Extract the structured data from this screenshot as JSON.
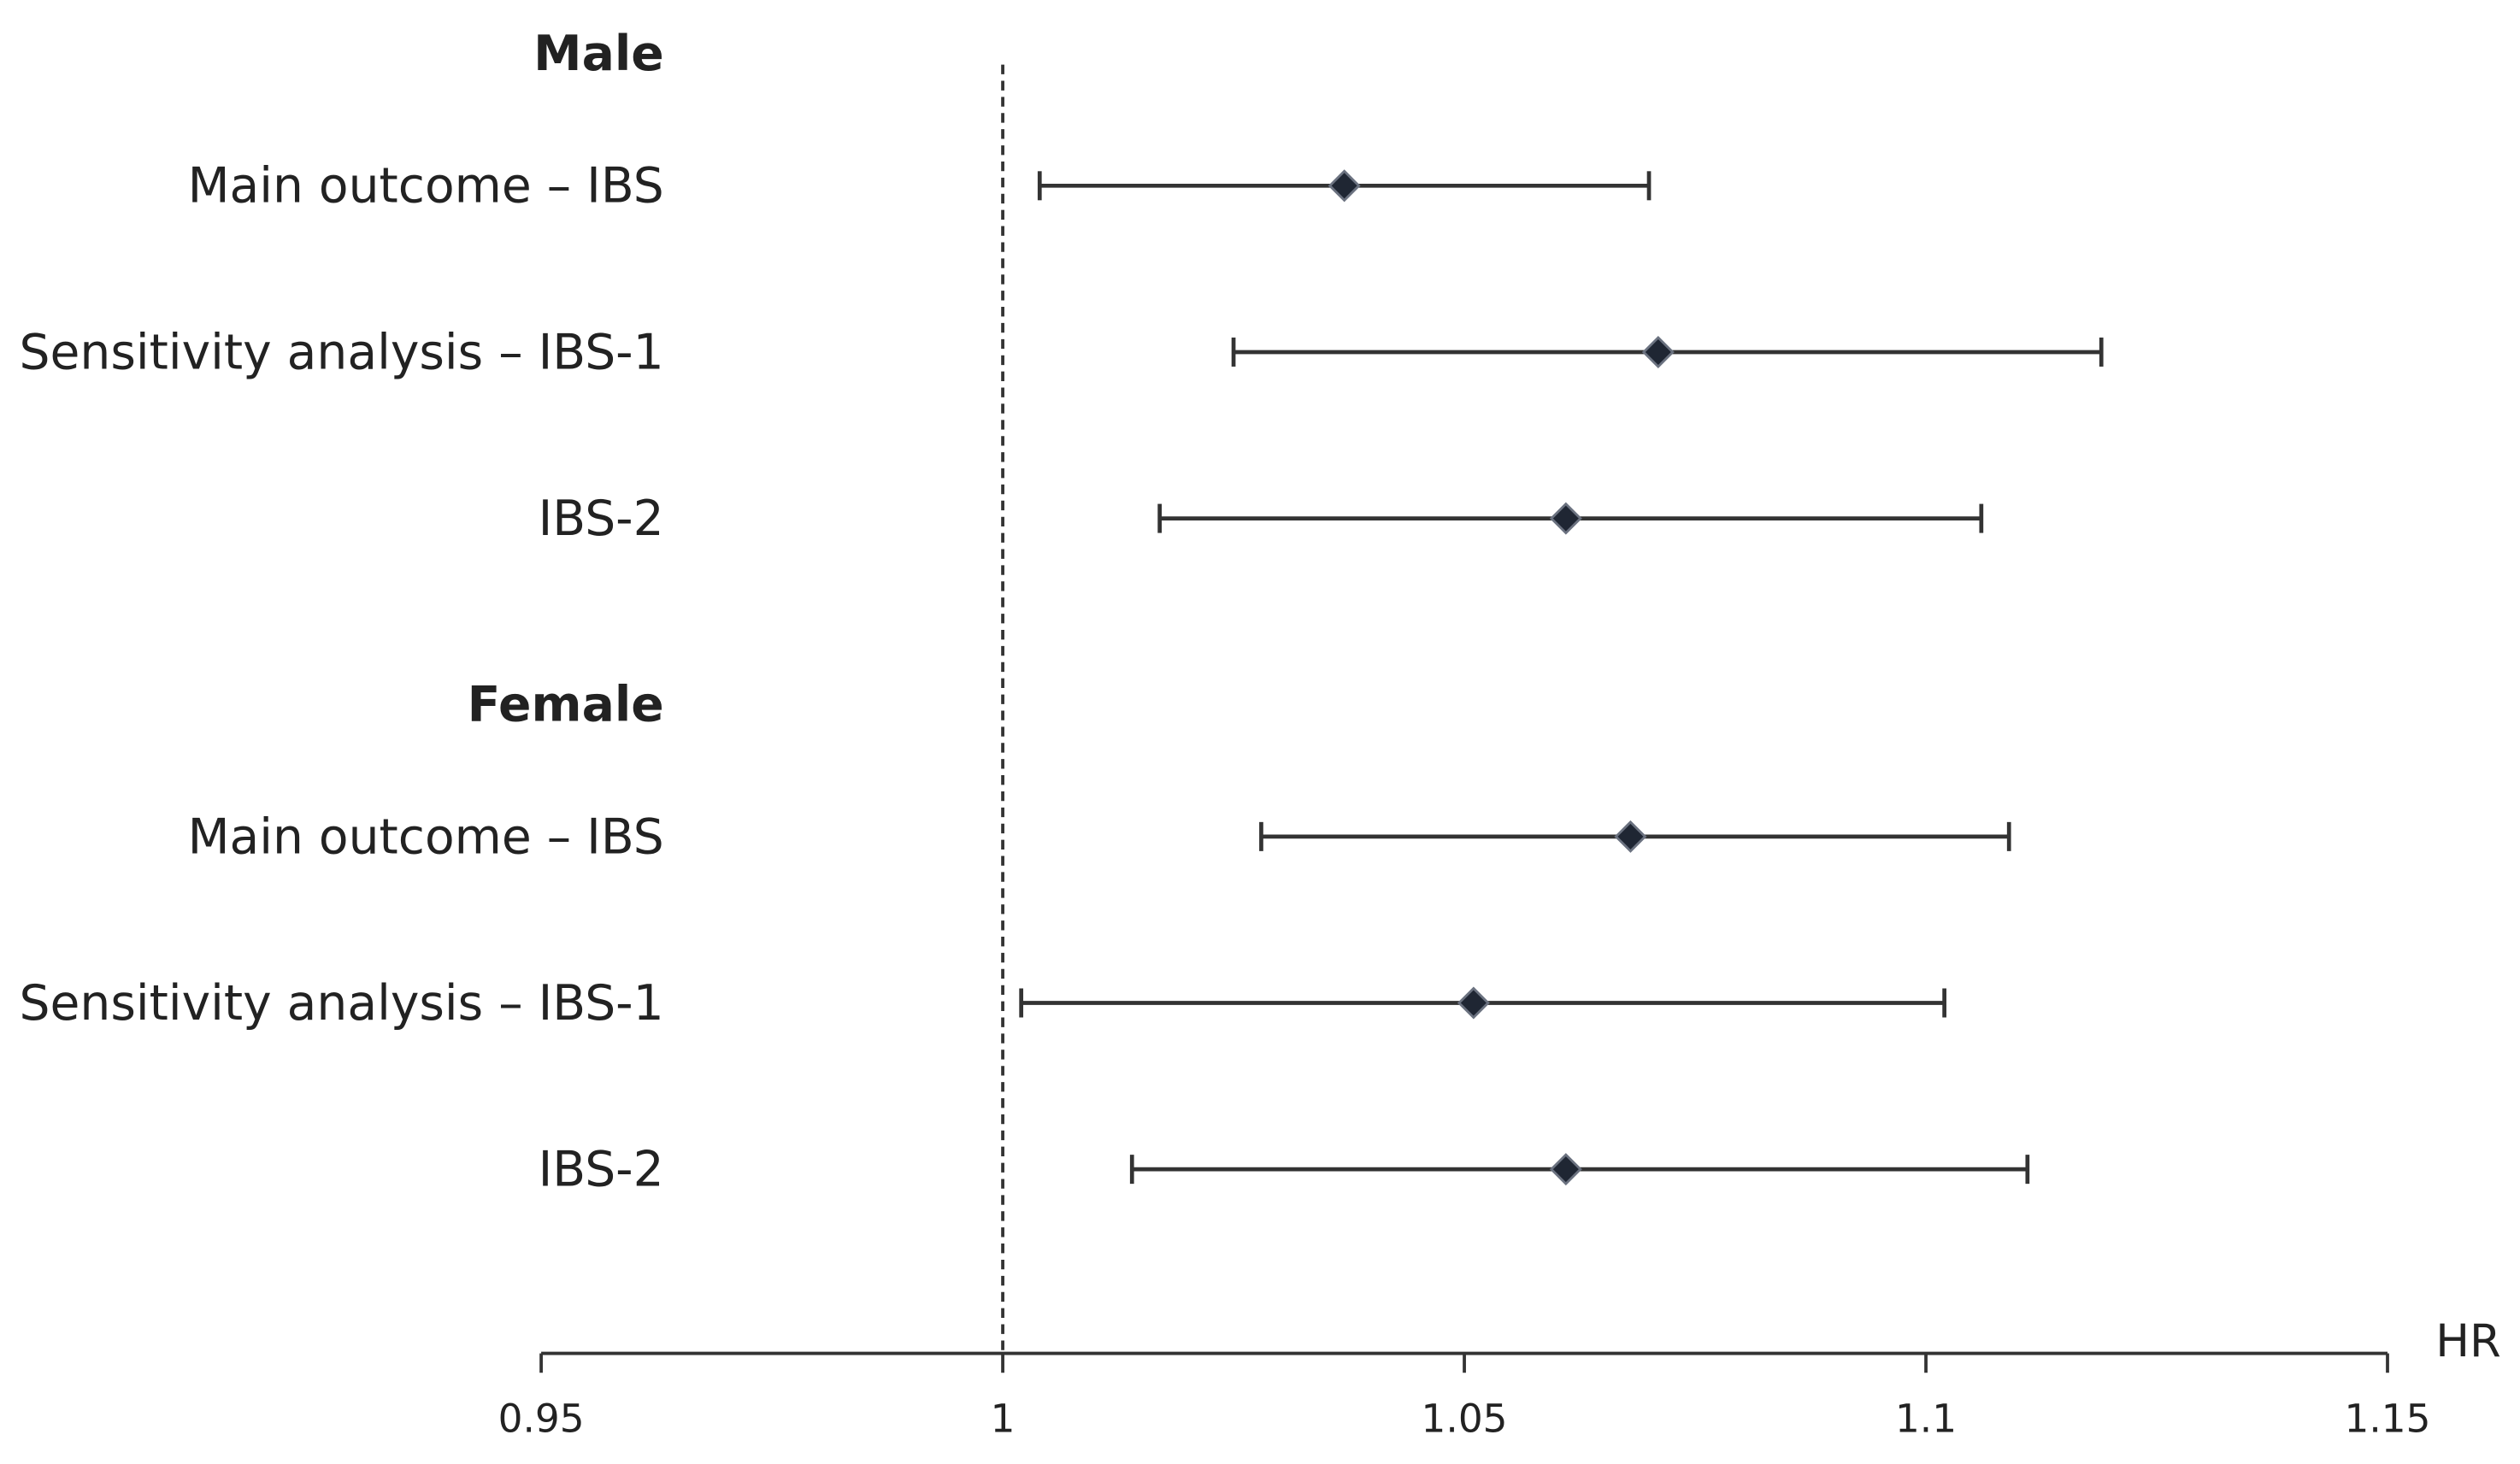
{
  "chart_data": {
    "type": "forest",
    "x_label": "HR",
    "xlim": [
      0.95,
      1.15
    ],
    "xticks": [
      0.95,
      1,
      1.05,
      1.1,
      1.15
    ],
    "reference_line": 1,
    "color": "#1f2633",
    "groups": [
      {
        "name": "Male",
        "categories": [
          "Main outcome – IBS",
          "Sensitivity analysis – IBS-1",
          "IBS-2"
        ],
        "hr": [
          1.037,
          1.071,
          1.061
        ],
        "lower": [
          1.004,
          1.025,
          1.017
        ],
        "upper": [
          1.07,
          1.119,
          1.106
        ]
      },
      {
        "name": "Female",
        "categories": [
          "Main outcome – IBS",
          "Sensitivity analysis – IBS-1",
          "IBS-2"
        ],
        "hr": [
          1.068,
          1.051,
          1.061
        ],
        "lower": [
          1.028,
          1.002,
          1.014
        ],
        "upper": [
          1.109,
          1.102,
          1.111
        ]
      }
    ]
  }
}
